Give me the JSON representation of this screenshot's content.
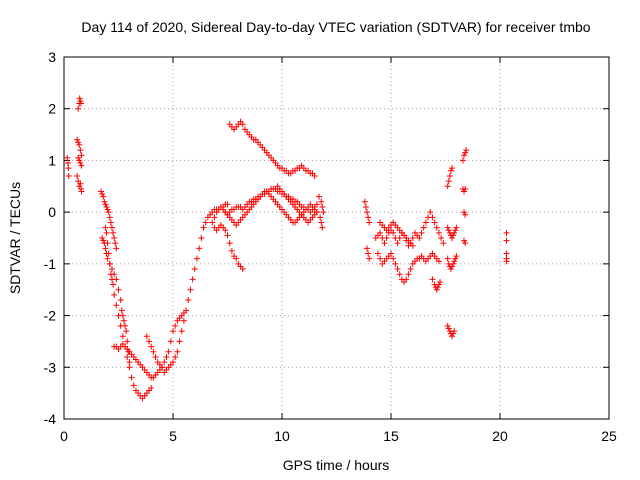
{
  "chart_data": {
    "type": "scatter",
    "title": "Day 114 of 2020, Sidereal Day-to-day VTEC variation (SDTVAR) for receiver tmbo",
    "xlabel": "GPS time / hours",
    "ylabel": "SDTVAR / TECUs",
    "xlim": [
      0,
      25
    ],
    "ylim": [
      -4,
      3
    ],
    "xticks": [
      0,
      5,
      10,
      15,
      20,
      25
    ],
    "yticks": [
      -4,
      -3,
      -2,
      -1,
      0,
      1,
      2,
      3
    ],
    "xtick_labels": [
      "0",
      "5",
      "10",
      "15",
      "20",
      "25"
    ],
    "ytick_labels": [
      "-4",
      "-3",
      "-2",
      "-1",
      "0",
      "1",
      "2",
      "3"
    ],
    "grid": true,
    "legend": "none",
    "marker": "+",
    "marker_color": "#ff0000",
    "series": [
      {
        "x": [
          0.15,
          0.18,
          0.2,
          0.22,
          0.65,
          0.7,
          0.72,
          0.75,
          0.78,
          0.6,
          0.65,
          0.7,
          0.75,
          0.8,
          0.6,
          0.65,
          0.7,
          0.75,
          0.78,
          0.8,
          0.65,
          0.7,
          0.75,
          0.8,
          1.7,
          1.75,
          1.8,
          1.85,
          1.9,
          1.95,
          2.0,
          2.05,
          2.1,
          2.15,
          2.2,
          2.25,
          2.3,
          2.35,
          2.4,
          1.75,
          1.8,
          1.85,
          1.9,
          1.95,
          2.0,
          2.1,
          2.2,
          2.3,
          2.4,
          2.5,
          2.6,
          2.65,
          2.7,
          2.75,
          2.8,
          2.85,
          2.9,
          2.95,
          3.0,
          1.9,
          1.95,
          2.0,
          2.05,
          2.1,
          2.15,
          2.2,
          2.25,
          2.3,
          2.4,
          2.5,
          2.6,
          2.7,
          2.8,
          2.9,
          3.0,
          3.1,
          3.2,
          3.3,
          3.4,
          3.5,
          3.6,
          3.7,
          3.8,
          3.9,
          4.0,
          2.3,
          2.4,
          2.5,
          2.6,
          2.7,
          2.8,
          2.9,
          3.0,
          3.1,
          3.2,
          3.3,
          3.4,
          3.5,
          3.6,
          3.7,
          3.8,
          3.9,
          4.0,
          4.1,
          4.2,
          4.3,
          4.4,
          4.5,
          3.8,
          3.9,
          4.0,
          4.1,
          4.2,
          4.3,
          4.4,
          4.5,
          4.6,
          4.7,
          4.8,
          4.9,
          5.0,
          5.1,
          5.2,
          5.3,
          5.4,
          5.5,
          4.6,
          4.7,
          4.8,
          4.9,
          5.0,
          5.1,
          5.2,
          5.3,
          5.4,
          5.5,
          5.6,
          5.7,
          5.8,
          5.9,
          6.0,
          6.1,
          6.2,
          6.3,
          6.4,
          6.5,
          6.6,
          6.7,
          6.8,
          6.9,
          7.0,
          7.1,
          7.2,
          7.3,
          7.4,
          7.5,
          7.6,
          7.7,
          7.8,
          7.9,
          8.0,
          8.1,
          8.2,
          8.3,
          8.4,
          8.5,
          8.6,
          8.7,
          8.8,
          8.9,
          9.0,
          9.1,
          9.2,
          9.3,
          9.4,
          9.5,
          9.6,
          9.7,
          9.8,
          9.9,
          10.0,
          10.1,
          10.2,
          10.3,
          10.4,
          10.5,
          10.6,
          10.7,
          10.8,
          10.9,
          11.0,
          11.1,
          11.2,
          11.3,
          11.4,
          11.5,
          6.8,
          6.9,
          7.0,
          7.1,
          7.2,
          7.3,
          7.4,
          7.5,
          7.6,
          7.7,
          7.8,
          7.9,
          8.0,
          8.1,
          8.2,
          8.3,
          8.4,
          8.5,
          8.6,
          8.7,
          8.8,
          8.9,
          9.0,
          9.1,
          9.2,
          9.3,
          9.4,
          9.5,
          9.6,
          9.7,
          9.8,
          9.9,
          10.0,
          10.1,
          10.2,
          10.3,
          10.4,
          10.5,
          10.6,
          10.7,
          10.8,
          10.9,
          11.0,
          11.1,
          11.2,
          11.3,
          11.4,
          11.5,
          11.6,
          6.9,
          7.0,
          7.1,
          7.2,
          7.3,
          7.4,
          7.5,
          7.6,
          7.7,
          7.8,
          7.9,
          8.0,
          8.1,
          8.2,
          7.4,
          7.5,
          7.6,
          7.7,
          7.8,
          7.9,
          8.0,
          8.1,
          8.2,
          8.3,
          8.4,
          8.5,
          8.6,
          8.7,
          8.8,
          8.9,
          9.0,
          9.1,
          9.2,
          9.3,
          9.4,
          9.5,
          9.6,
          9.7,
          9.8,
          9.9,
          10.0,
          10.1,
          10.2,
          10.3,
          10.4,
          10.5,
          10.6,
          10.7,
          10.8,
          10.9,
          11.0,
          11.1,
          11.2,
          11.3,
          11.4,
          11.5,
          11.6,
          9.8,
          9.9,
          10.0,
          10.1,
          10.2,
          10.3,
          10.4,
          10.5,
          10.6,
          10.7,
          10.8,
          10.9,
          11.0,
          11.1,
          11.2,
          11.3,
          11.4,
          11.5,
          11.6,
          11.7,
          11.8,
          11.85,
          11.9,
          11.75,
          11.8,
          11.85,
          13.8,
          13.85,
          13.9,
          13.95,
          14.0,
          13.9,
          13.95,
          14.0,
          14.3,
          14.4,
          14.5,
          14.6,
          14.7,
          14.8,
          14.9,
          15.0,
          15.1,
          15.2,
          15.3,
          15.4,
          15.5,
          15.6,
          15.7,
          15.8,
          15.9,
          16.0,
          16.1,
          16.2,
          16.3,
          16.4,
          16.5,
          16.6,
          16.7,
          16.8,
          16.9,
          17.0,
          17.1,
          17.2,
          17.3,
          17.4,
          14.4,
          14.5,
          14.6,
          14.7,
          14.8,
          14.9,
          15.0,
          15.1,
          15.2,
          15.3,
          15.4,
          15.5,
          15.6,
          15.7,
          15.8,
          15.9,
          16.0,
          16.1,
          16.2,
          16.3,
          16.4,
          16.5,
          16.6,
          16.7,
          16.8,
          16.9,
          17.0,
          17.1,
          17.2,
          14.5,
          14.6,
          14.7,
          14.8,
          14.9,
          15.0,
          15.1,
          15.2,
          15.3,
          15.4,
          15.5,
          15.6,
          15.7,
          15.8,
          15.9,
          16.0,
          16.9,
          17.0,
          17.05,
          17.1,
          17.15,
          17.2,
          17.25,
          17.6,
          17.65,
          17.7,
          17.75,
          17.8,
          17.85,
          17.9,
          17.95,
          18.0,
          18.0,
          17.95,
          17.9,
          17.85,
          17.8,
          17.75,
          17.7,
          17.65,
          17.6,
          17.6,
          17.65,
          17.7,
          17.75,
          17.8,
          17.85,
          17.9,
          17.6,
          17.65,
          17.7,
          17.75,
          17.8,
          18.3,
          18.35,
          18.4,
          18.45,
          18.3,
          18.35,
          18.4,
          18.35,
          18.4,
          18.35,
          18.4,
          20.3,
          20.3,
          20.3,
          20.3,
          20.3
        ],
        "y": [
          1.05,
          0.95,
          0.85,
          0.7,
          2.0,
          2.1,
          2.2,
          2.15,
          2.1,
          1.4,
          1.35,
          1.3,
          1.2,
          1.1,
          0.7,
          0.6,
          0.5,
          0.55,
          0.45,
          0.4,
          1.05,
          1.0,
          0.95,
          0.9,
          0.4,
          0.35,
          0.3,
          0.2,
          0.15,
          0.1,
          0.05,
          0.0,
          -0.1,
          -0.2,
          -0.3,
          -0.4,
          -0.5,
          -0.6,
          -0.7,
          -0.5,
          -0.55,
          -0.6,
          -0.7,
          -0.8,
          -0.9,
          -1.0,
          -1.1,
          -1.2,
          -1.3,
          -1.5,
          -1.7,
          -1.9,
          -2.0,
          -2.1,
          -2.2,
          -2.3,
          -2.5,
          -2.7,
          -2.9,
          -0.3,
          -0.4,
          -0.6,
          -0.8,
          -1.0,
          -1.2,
          -1.3,
          -1.4,
          -1.6,
          -1.8,
          -2.0,
          -2.2,
          -2.4,
          -2.6,
          -2.8,
          -3.0,
          -3.2,
          -3.35,
          -3.45,
          -3.5,
          -3.55,
          -3.6,
          -3.55,
          -3.5,
          -3.45,
          -3.4,
          -2.6,
          -2.6,
          -2.65,
          -2.6,
          -2.55,
          -2.6,
          -2.65,
          -2.7,
          -2.75,
          -2.8,
          -2.85,
          -2.9,
          -2.95,
          -3.0,
          -3.05,
          -3.1,
          -3.15,
          -3.2,
          -3.2,
          -3.15,
          -3.1,
          -3.05,
          -3.0,
          -2.4,
          -2.5,
          -2.6,
          -2.7,
          -2.8,
          -2.9,
          -2.95,
          -3.0,
          -2.9,
          -2.8,
          -2.7,
          -2.5,
          -2.3,
          -2.2,
          -2.1,
          -2.05,
          -2.0,
          -1.95,
          -3.1,
          -3.05,
          -3.0,
          -2.95,
          -2.9,
          -2.8,
          -2.7,
          -2.5,
          -2.3,
          -2.1,
          -1.9,
          -1.7,
          -1.5,
          -1.3,
          -1.1,
          -0.9,
          -0.7,
          -0.5,
          -0.3,
          -0.2,
          -0.1,
          -0.05,
          0.0,
          0.05,
          0.05,
          0.05,
          0.1,
          0.1,
          0.15,
          0.15,
          1.7,
          1.65,
          1.6,
          1.65,
          1.7,
          1.75,
          1.7,
          1.6,
          1.55,
          1.5,
          1.45,
          1.4,
          1.4,
          1.35,
          1.3,
          1.25,
          1.2,
          1.15,
          1.1,
          1.05,
          1.0,
          0.95,
          0.9,
          0.85,
          0.85,
          0.8,
          0.8,
          0.75,
          0.75,
          0.8,
          0.8,
          0.85,
          0.85,
          0.9,
          0.85,
          0.8,
          0.8,
          0.75,
          0.75,
          0.7,
          -0.2,
          -0.1,
          0.0,
          0.05,
          0.1,
          0.05,
          0.0,
          -0.05,
          0.0,
          0.05,
          0.05,
          0.1,
          0.1,
          0.1,
          0.05,
          0.1,
          0.15,
          0.2,
          0.2,
          0.25,
          0.25,
          0.3,
          0.3,
          0.35,
          0.35,
          0.4,
          0.4,
          0.45,
          0.45,
          0.45,
          0.4,
          0.4,
          0.35,
          0.35,
          0.3,
          0.3,
          0.25,
          0.25,
          0.2,
          0.2,
          0.15,
          0.1,
          0.1,
          0.05,
          0.05,
          0.0,
          0.05,
          0.1,
          0.15,
          -0.3,
          -0.35,
          -0.3,
          -0.25,
          -0.3,
          -0.35,
          -0.45,
          -0.6,
          -0.75,
          -0.85,
          -0.9,
          -1.0,
          -1.05,
          -1.1,
          0.0,
          -0.05,
          -0.1,
          -0.15,
          -0.2,
          -0.25,
          -0.2,
          -0.15,
          -0.1,
          -0.05,
          0.0,
          0.05,
          0.1,
          0.15,
          0.2,
          0.25,
          0.3,
          0.35,
          0.4,
          0.4,
          0.35,
          0.3,
          0.25,
          0.2,
          0.15,
          0.1,
          0.05,
          0.0,
          -0.05,
          -0.1,
          -0.15,
          -0.2,
          -0.2,
          -0.15,
          -0.1,
          -0.05,
          0.0,
          0.05,
          0.1,
          0.15,
          0.1,
          0.05,
          0.0,
          0.5,
          0.45,
          0.4,
          0.35,
          0.3,
          0.25,
          0.2,
          0.15,
          0.1,
          0.05,
          0.0,
          -0.05,
          -0.1,
          -0.15,
          -0.2,
          -0.15,
          -0.1,
          -0.05,
          0.0,
          0.3,
          0.2,
          0.1,
          0.0,
          -0.1,
          -0.2,
          -0.3,
          0.2,
          0.1,
          0.0,
          -0.1,
          -0.2,
          -0.7,
          -0.8,
          -0.9,
          -0.5,
          -0.45,
          -0.4,
          -0.5,
          -0.6,
          -0.5,
          -0.4,
          -0.35,
          -0.4,
          -0.5,
          -0.6,
          -0.5,
          -0.4,
          -0.45,
          -0.55,
          -0.65,
          -0.6,
          -0.5,
          -0.4,
          -0.45,
          -0.5,
          -0.4,
          -0.3,
          -0.2,
          -0.1,
          0.0,
          -0.1,
          -0.2,
          -0.3,
          -0.4,
          -0.5,
          -0.6,
          -0.8,
          -0.9,
          -1.0,
          -0.95,
          -0.9,
          -0.85,
          -0.8,
          -0.9,
          -1.0,
          -1.1,
          -1.2,
          -1.3,
          -1.35,
          -1.3,
          -1.2,
          -1.1,
          -1.0,
          -0.95,
          -0.9,
          -0.9,
          -0.85,
          -0.9,
          -0.95,
          -0.9,
          -0.85,
          -0.8,
          -0.85,
          -0.9,
          -0.95,
          -0.2,
          -0.25,
          -0.3,
          -0.35,
          -0.3,
          -0.25,
          -0.2,
          -0.25,
          -0.3,
          -0.35,
          -0.4,
          -0.45,
          -0.5,
          -0.55,
          -0.6,
          -0.65,
          -1.3,
          -1.4,
          -1.45,
          -1.5,
          -1.45,
          -1.4,
          -1.35,
          -0.9,
          -1.0,
          -1.05,
          -1.1,
          -1.05,
          -1.0,
          -0.95,
          -0.9,
          -0.85,
          -0.3,
          -0.35,
          -0.4,
          -0.45,
          -0.5,
          -0.45,
          -0.4,
          -0.35,
          -0.3,
          -2.2,
          -2.25,
          -2.3,
          -2.35,
          -2.4,
          -2.35,
          -2.3,
          0.5,
          0.6,
          0.7,
          0.8,
          0.85,
          1.0,
          1.1,
          1.15,
          1.2,
          0.45,
          0.4,
          0.45,
          0.0,
          -0.05,
          -0.55,
          -0.6,
          -0.4,
          -0.55,
          -0.8,
          -0.9,
          -0.95
        ]
      }
    ]
  }
}
